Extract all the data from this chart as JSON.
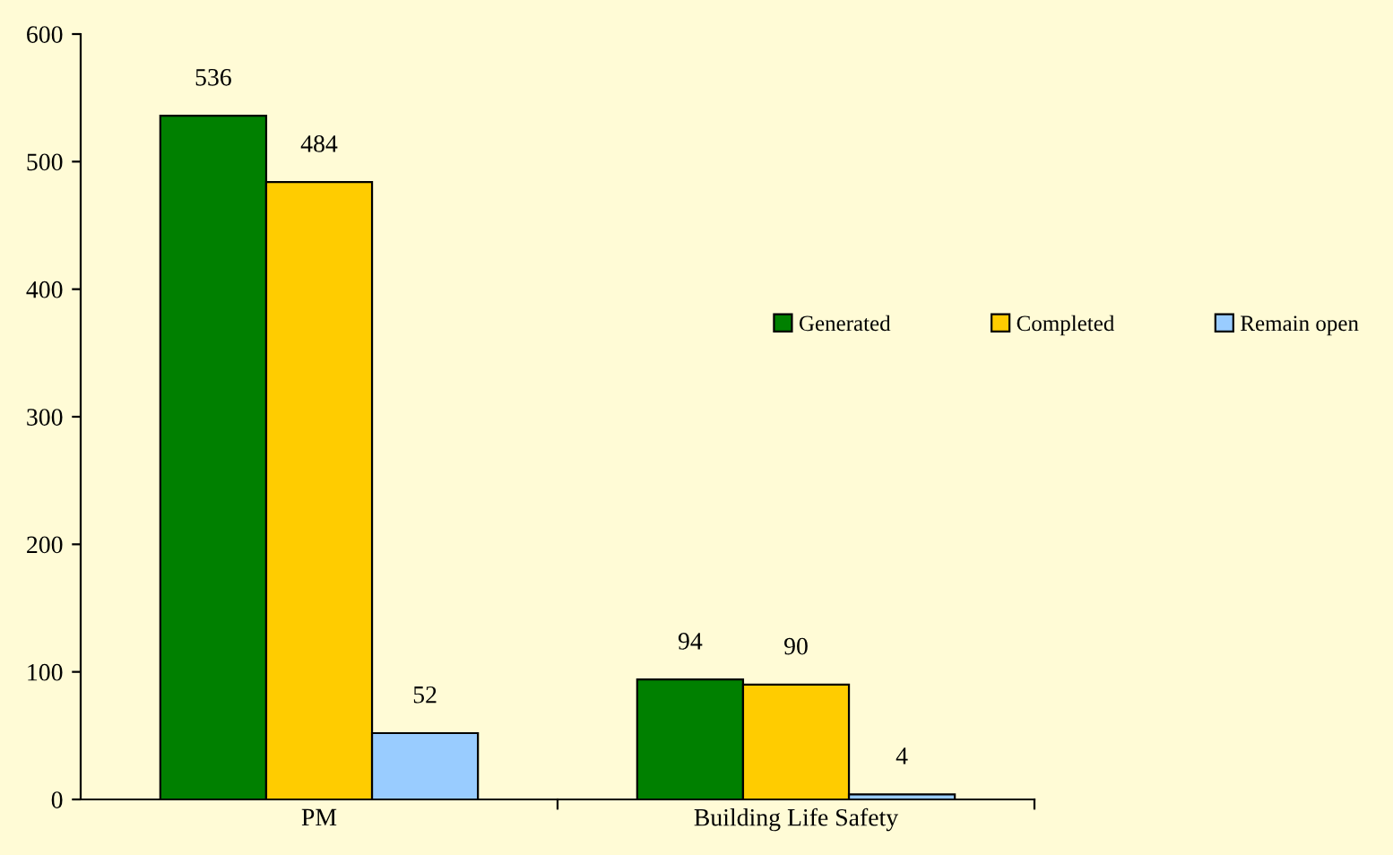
{
  "chart_data": {
    "type": "bar",
    "categories": [
      "PM",
      "Building Life Safety"
    ],
    "series": [
      {
        "name": "Generated",
        "color": "#008000",
        "values": [
          536,
          94
        ]
      },
      {
        "name": "Completed",
        "color": "#ffcc00",
        "values": [
          484,
          90
        ]
      },
      {
        "name": "Remain open",
        "color": "#99ccff",
        "values": [
          52,
          4
        ]
      }
    ],
    "ylim": [
      0,
      600
    ],
    "yticks": [
      0,
      100,
      200,
      300,
      400,
      500,
      600
    ],
    "data_labels": true,
    "legend": "right",
    "grid": false
  }
}
